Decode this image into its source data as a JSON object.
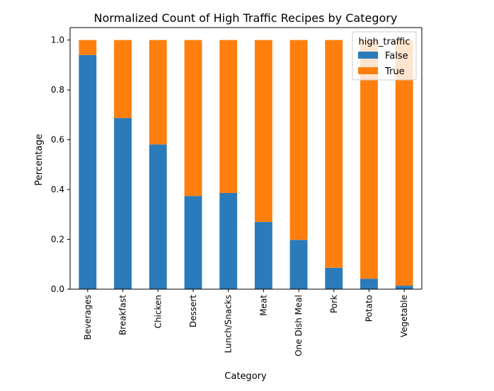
{
  "chart_data": {
    "type": "bar",
    "stacked": true,
    "title": "Normalized Count of High Traffic Recipes by Category",
    "xlabel": "Category",
    "ylabel": "Percentage",
    "ylim": [
      0,
      1.05
    ],
    "yticks": [
      "0.0",
      "0.2",
      "0.4",
      "0.6",
      "0.8",
      "1.0"
    ],
    "categories": [
      "Beverages",
      "Breakfast",
      "Chicken",
      "Dessert",
      "Lunch/Snacks",
      "Meat",
      "One Dish Meal",
      "Pork",
      "Potato",
      "Vegetable"
    ],
    "legend": {
      "title": "high_traffic",
      "placement": "top-right"
    },
    "grid": false,
    "series": [
      {
        "name": "False",
        "color": "#2b7bba",
        "values": [
          0.94,
          0.687,
          0.581,
          0.374,
          0.386,
          0.27,
          0.198,
          0.086,
          0.042,
          0.014
        ]
      },
      {
        "name": "True",
        "color": "#ff7f0e",
        "values": [
          0.06,
          0.313,
          0.419,
          0.626,
          0.614,
          0.73,
          0.802,
          0.914,
          0.958,
          0.986
        ]
      }
    ]
  }
}
